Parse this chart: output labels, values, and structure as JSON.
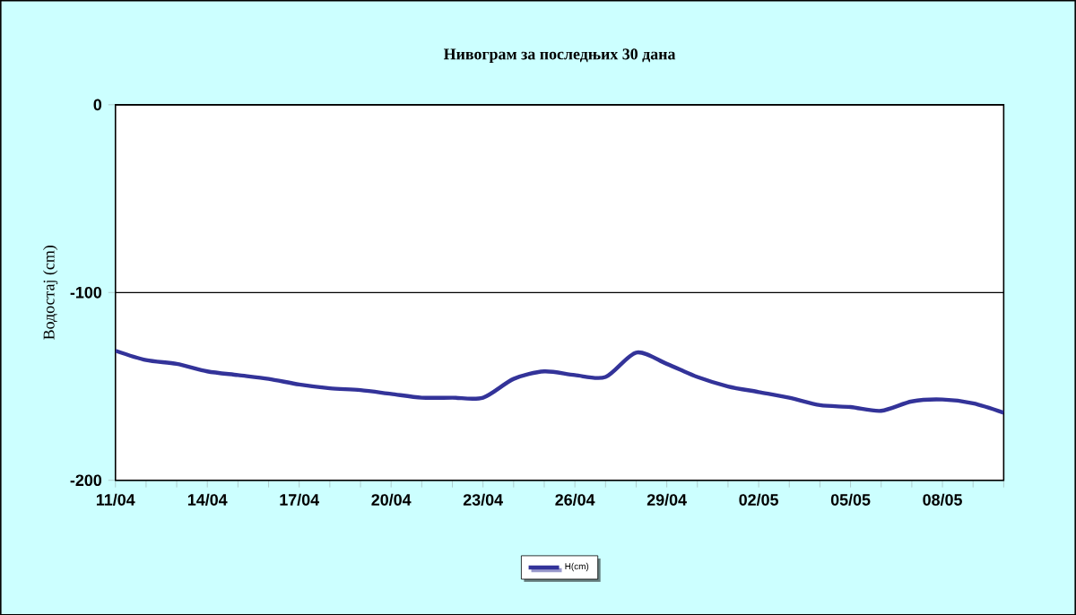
{
  "chart_data": {
    "type": "line",
    "title": "Нивограм за последњих 30 дана",
    "ylabel": "Водостај (cm)",
    "categories": [
      "11/04",
      null,
      null,
      "14/04",
      null,
      null,
      "17/04",
      null,
      null,
      "20/04",
      null,
      null,
      "23/04",
      null,
      null,
      "26/04",
      null,
      null,
      "29/04",
      null,
      null,
      "02/05",
      null,
      null,
      "05/05",
      null,
      null,
      "08/05",
      null,
      null
    ],
    "series": [
      {
        "name": "H(cm)",
        "color": "#333399",
        "values": [
          -131,
          -136,
          -138,
          -142,
          -144,
          -146,
          -149,
          -151,
          -152,
          -154,
          -156,
          -156,
          -156,
          -146,
          -142,
          -144,
          -145,
          -132,
          -138,
          -145,
          -150,
          -153,
          -156,
          -160,
          -161,
          -163,
          -158,
          -157,
          -159,
          -164
        ]
      }
    ],
    "ylim": [
      -200,
      0
    ],
    "yticks": [
      -200,
      -100,
      0
    ],
    "grid": "y",
    "legend": "bottom",
    "marker": "none",
    "line_style": "solid"
  }
}
